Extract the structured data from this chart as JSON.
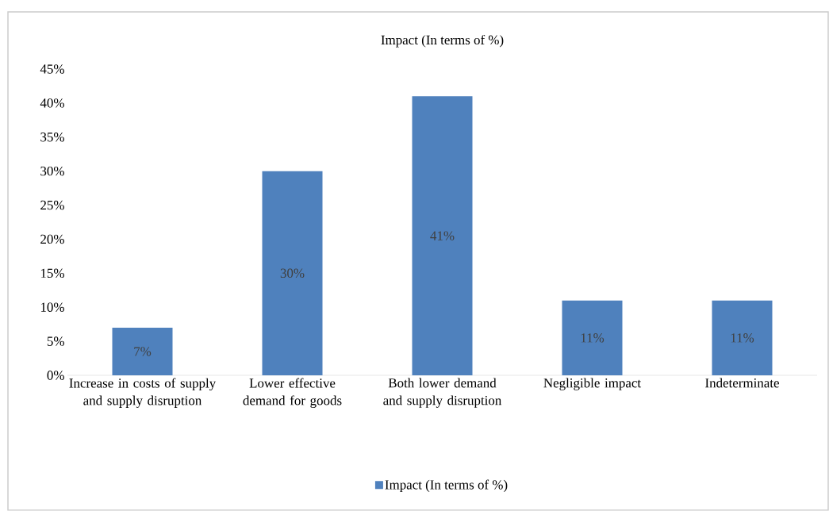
{
  "chart_data": {
    "type": "bar",
    "title": "Impact (In terms of %)",
    "categories": [
      "Increase in costs of supply and supply disruption",
      "Lower effective demand for goods",
      "Both lower demand and supply disruption",
      "Negligible impact",
      "Indeterminate"
    ],
    "series": [
      {
        "name": "Impact (In terms of %)",
        "color": "#4f81bd",
        "values": [
          7,
          30,
          41,
          11,
          11
        ],
        "value_labels": [
          "7%",
          "30%",
          "41%",
          "11%",
          "11%"
        ]
      }
    ],
    "ylim": [
      0,
      45
    ],
    "yticks": [
      {
        "value": 0,
        "label": "0%"
      },
      {
        "value": 5,
        "label": "5%"
      },
      {
        "value": 10,
        "label": "10%"
      },
      {
        "value": 15,
        "label": "15%"
      },
      {
        "value": 20,
        "label": "20%"
      },
      {
        "value": 25,
        "label": "25%"
      },
      {
        "value": 30,
        "label": "30%"
      },
      {
        "value": 35,
        "label": "35%"
      },
      {
        "value": 40,
        "label": "40%"
      },
      {
        "value": 45,
        "label": "45%"
      }
    ],
    "legend": "bottom"
  }
}
